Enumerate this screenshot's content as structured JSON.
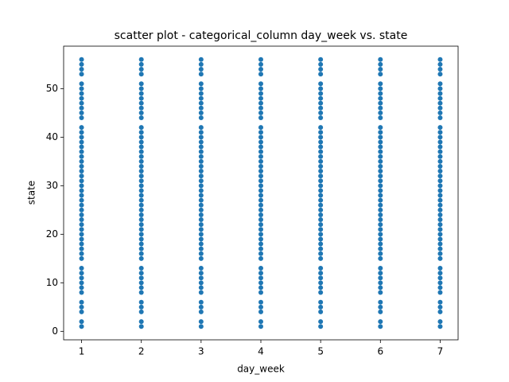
{
  "chart_data": {
    "type": "scatter",
    "title": "scatter plot - categorical_column day_week vs. state",
    "x_label": "day_week",
    "y_label": "state",
    "color": "#1f77b4",
    "xlim": [
      0.7,
      7.3
    ],
    "ylim": [
      -1.75,
      58.75
    ],
    "xticks": [
      1,
      2,
      3,
      4,
      5,
      6,
      7
    ],
    "yticks": [
      0,
      10,
      20,
      30,
      40,
      50
    ],
    "x": [
      1,
      1,
      1,
      1,
      1,
      1,
      1,
      1,
      1,
      1,
      1,
      1,
      1,
      1,
      1,
      1,
      1,
      1,
      1,
      1,
      1,
      1,
      1,
      1,
      1,
      1,
      1,
      1,
      1,
      1,
      1,
      1,
      1,
      1,
      1,
      1,
      1,
      1,
      1,
      1,
      1,
      1,
      1,
      1,
      1,
      1,
      1,
      1,
      1,
      1,
      1,
      2,
      2,
      2,
      2,
      2,
      2,
      2,
      2,
      2,
      2,
      2,
      2,
      2,
      2,
      2,
      2,
      2,
      2,
      2,
      2,
      2,
      2,
      2,
      2,
      2,
      2,
      2,
      2,
      2,
      2,
      2,
      2,
      2,
      2,
      2,
      2,
      2,
      2,
      2,
      2,
      2,
      2,
      2,
      2,
      2,
      2,
      2,
      2,
      2,
      2,
      2,
      3,
      3,
      3,
      3,
      3,
      3,
      3,
      3,
      3,
      3,
      3,
      3,
      3,
      3,
      3,
      3,
      3,
      3,
      3,
      3,
      3,
      3,
      3,
      3,
      3,
      3,
      3,
      3,
      3,
      3,
      3,
      3,
      3,
      3,
      3,
      3,
      3,
      3,
      3,
      3,
      3,
      3,
      3,
      3,
      3,
      3,
      3,
      3,
      3,
      3,
      3,
      4,
      4,
      4,
      4,
      4,
      4,
      4,
      4,
      4,
      4,
      4,
      4,
      4,
      4,
      4,
      4,
      4,
      4,
      4,
      4,
      4,
      4,
      4,
      4,
      4,
      4,
      4,
      4,
      4,
      4,
      4,
      4,
      4,
      4,
      4,
      4,
      4,
      4,
      4,
      4,
      4,
      4,
      4,
      4,
      4,
      4,
      4,
      4,
      4,
      4,
      4,
      5,
      5,
      5,
      5,
      5,
      5,
      5,
      5,
      5,
      5,
      5,
      5,
      5,
      5,
      5,
      5,
      5,
      5,
      5,
      5,
      5,
      5,
      5,
      5,
      5,
      5,
      5,
      5,
      5,
      5,
      5,
      5,
      5,
      5,
      5,
      5,
      5,
      5,
      5,
      5,
      5,
      5,
      5,
      5,
      5,
      5,
      5,
      5,
      5,
      5,
      5,
      6,
      6,
      6,
      6,
      6,
      6,
      6,
      6,
      6,
      6,
      6,
      6,
      6,
      6,
      6,
      6,
      6,
      6,
      6,
      6,
      6,
      6,
      6,
      6,
      6,
      6,
      6,
      6,
      6,
      6,
      6,
      6,
      6,
      6,
      6,
      6,
      6,
      6,
      6,
      6,
      6,
      6,
      6,
      6,
      6,
      6,
      6,
      6,
      6,
      6,
      6,
      7,
      7,
      7,
      7,
      7,
      7,
      7,
      7,
      7,
      7,
      7,
      7,
      7,
      7,
      7,
      7,
      7,
      7,
      7,
      7,
      7,
      7,
      7,
      7,
      7,
      7,
      7,
      7,
      7,
      7,
      7,
      7,
      7,
      7,
      7,
      7,
      7,
      7,
      7,
      7,
      7,
      7,
      7,
      7,
      7,
      7,
      7,
      7,
      7,
      7,
      7
    ],
    "y": [
      1,
      2,
      4,
      5,
      6,
      8,
      9,
      10,
      11,
      12,
      13,
      15,
      16,
      17,
      18,
      19,
      20,
      21,
      22,
      23,
      24,
      25,
      26,
      27,
      28,
      29,
      30,
      31,
      32,
      33,
      34,
      35,
      36,
      37,
      38,
      39,
      40,
      41,
      42,
      44,
      45,
      46,
      47,
      48,
      49,
      50,
      51,
      53,
      54,
      55,
      56,
      1,
      2,
      4,
      5,
      6,
      8,
      9,
      10,
      11,
      12,
      13,
      15,
      16,
      17,
      18,
      19,
      20,
      21,
      22,
      23,
      24,
      25,
      26,
      27,
      28,
      29,
      30,
      31,
      32,
      33,
      34,
      35,
      36,
      37,
      38,
      39,
      40,
      41,
      42,
      44,
      45,
      46,
      47,
      48,
      49,
      50,
      51,
      53,
      54,
      55,
      56,
      1,
      2,
      4,
      5,
      6,
      8,
      9,
      10,
      11,
      12,
      13,
      15,
      16,
      17,
      18,
      19,
      20,
      21,
      22,
      23,
      24,
      25,
      26,
      27,
      28,
      29,
      30,
      31,
      32,
      33,
      34,
      35,
      36,
      37,
      38,
      39,
      40,
      41,
      42,
      44,
      45,
      46,
      47,
      48,
      49,
      50,
      51,
      53,
      54,
      55,
      56,
      1,
      2,
      4,
      5,
      6,
      8,
      9,
      10,
      11,
      12,
      13,
      15,
      16,
      17,
      18,
      19,
      20,
      21,
      22,
      23,
      24,
      25,
      26,
      27,
      28,
      29,
      30,
      31,
      32,
      33,
      34,
      35,
      36,
      37,
      38,
      39,
      40,
      41,
      42,
      44,
      45,
      46,
      47,
      48,
      49,
      50,
      51,
      53,
      54,
      55,
      56,
      1,
      2,
      4,
      5,
      6,
      8,
      9,
      10,
      11,
      12,
      13,
      15,
      16,
      17,
      18,
      19,
      20,
      21,
      22,
      23,
      24,
      25,
      26,
      27,
      28,
      29,
      30,
      31,
      32,
      33,
      34,
      35,
      36,
      37,
      38,
      39,
      40,
      41,
      42,
      44,
      45,
      46,
      47,
      48,
      49,
      50,
      51,
      53,
      54,
      55,
      56,
      1,
      2,
      4,
      5,
      6,
      8,
      9,
      10,
      11,
      12,
      13,
      15,
      16,
      17,
      18,
      19,
      20,
      21,
      22,
      23,
      24,
      25,
      26,
      27,
      28,
      29,
      30,
      31,
      32,
      33,
      34,
      35,
      36,
      37,
      38,
      39,
      40,
      41,
      42,
      44,
      45,
      46,
      47,
      48,
      49,
      50,
      51,
      53,
      54,
      55,
      56,
      1,
      2,
      4,
      5,
      6,
      8,
      9,
      10,
      11,
      12,
      13,
      15,
      16,
      17,
      18,
      19,
      20,
      21,
      22,
      23,
      24,
      25,
      26,
      27,
      28,
      29,
      30,
      31,
      32,
      33,
      34,
      35,
      36,
      37,
      38,
      39,
      40,
      41,
      42,
      44,
      45,
      46,
      47,
      48,
      49,
      50,
      51,
      53,
      54,
      55,
      56
    ]
  }
}
